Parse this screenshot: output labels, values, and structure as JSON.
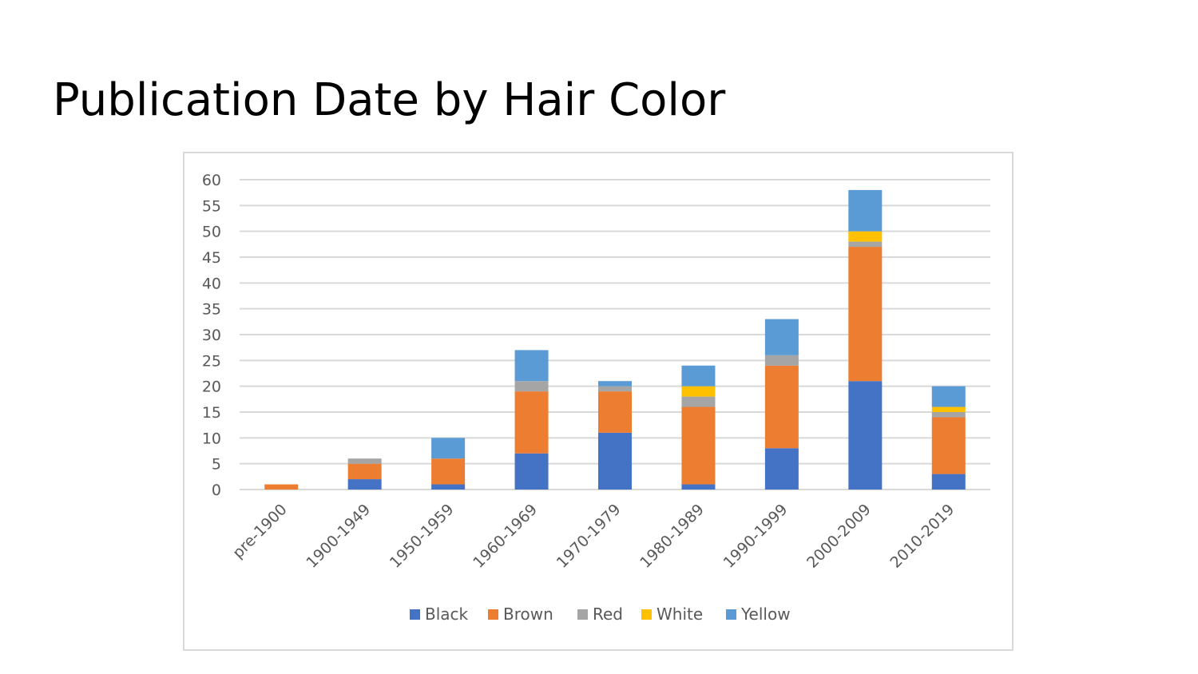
{
  "slide": {
    "title": "Publication Date by Hair Color"
  },
  "chart_data": {
    "type": "bar",
    "stacked": true,
    "categories": [
      "pre-1900",
      "1900-1949",
      "1950-1959",
      "1960-1969",
      "1970-1979",
      "1980-1989",
      "1990-1999",
      "2000-2009",
      "2010-2019"
    ],
    "series": [
      {
        "name": "Black",
        "color": "#4472c4",
        "values": [
          0,
          2,
          1,
          7,
          11,
          1,
          8,
          21,
          3
        ]
      },
      {
        "name": "Brown",
        "color": "#ed7d31",
        "values": [
          1,
          3,
          5,
          12,
          8,
          15,
          16,
          26,
          11
        ]
      },
      {
        "name": "Red",
        "color": "#a5a5a5",
        "values": [
          0,
          1,
          0,
          2,
          1,
          2,
          2,
          1,
          1
        ]
      },
      {
        "name": "White",
        "color": "#ffc000",
        "values": [
          0,
          0,
          0,
          0,
          0,
          2,
          0,
          2,
          1
        ]
      },
      {
        "name": "Yellow",
        "color": "#5b9bd5",
        "values": [
          0,
          0,
          4,
          6,
          1,
          4,
          7,
          8,
          4
        ]
      }
    ],
    "ylim": [
      0,
      60
    ],
    "yticks": [
      0,
      5,
      10,
      15,
      20,
      25,
      30,
      35,
      40,
      45,
      50,
      55,
      60
    ],
    "grid": true,
    "legend_position": "bottom",
    "gridline_color": "#d9d9d9",
    "xlabel": "",
    "ylabel": ""
  }
}
